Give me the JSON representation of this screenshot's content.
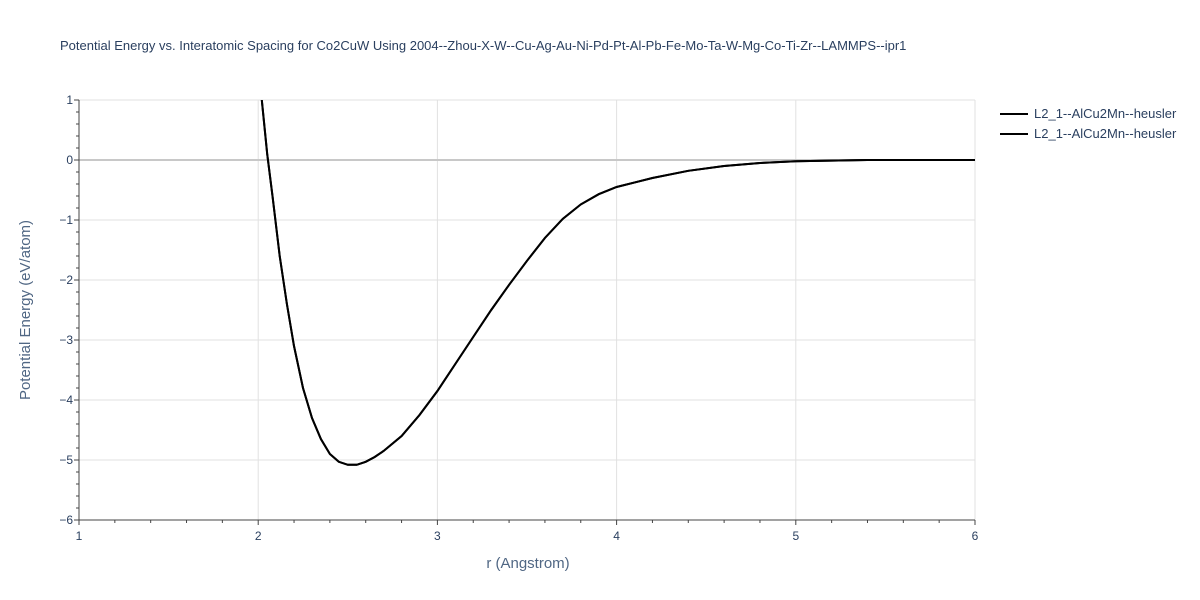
{
  "chart_data": {
    "type": "line",
    "title": "Potential Energy vs. Interatomic Spacing for Co2CuW Using 2004--Zhou-X-W--Cu-Ag-Au-Ni-Pd-Pt-Al-Pb-Fe-Mo-Ta-W-Mg-Co-Ti-Zr--LAMMPS--ipr1",
    "xlabel": "r (Angstrom)",
    "ylabel": "Potential Energy (eV/atom)",
    "xlim": [
      1,
      6
    ],
    "ylim": [
      -6,
      1
    ],
    "x_ticks": [
      1,
      2,
      3,
      4,
      5,
      6
    ],
    "y_ticks": [
      1,
      0,
      -1,
      -2,
      -3,
      -4,
      -5,
      -6
    ],
    "y_tick_labels": [
      "1",
      "0",
      "−1",
      "−2",
      "−3",
      "−4",
      "−5",
      "−6"
    ],
    "grid": true,
    "legend_position": "top-right",
    "series": [
      {
        "name": "L2_1--AlCu2Mn--heusler",
        "color": "#000000",
        "x": [
          2.02,
          2.05,
          2.08,
          2.12,
          2.16,
          2.2,
          2.25,
          2.3,
          2.35,
          2.4,
          2.45,
          2.5,
          2.55,
          2.6,
          2.65,
          2.7,
          2.8,
          2.9,
          3.0,
          3.1,
          3.2,
          3.3,
          3.4,
          3.5,
          3.6,
          3.7,
          3.8,
          3.9,
          4.0,
          4.2,
          4.4,
          4.6,
          4.8,
          5.0,
          5.2,
          5.4,
          5.6,
          5.8,
          6.0
        ],
        "y": [
          1.0,
          0.1,
          -0.6,
          -1.6,
          -2.4,
          -3.1,
          -3.8,
          -4.3,
          -4.65,
          -4.9,
          -5.03,
          -5.08,
          -5.08,
          -5.03,
          -4.95,
          -4.85,
          -4.6,
          -4.25,
          -3.85,
          -3.4,
          -2.95,
          -2.5,
          -2.08,
          -1.68,
          -1.3,
          -0.98,
          -0.74,
          -0.57,
          -0.45,
          -0.3,
          -0.18,
          -0.1,
          -0.05,
          -0.02,
          -0.01,
          0.0,
          0.0,
          0.0,
          0.0
        ]
      },
      {
        "name": "L2_1--AlCu2Mn--heusler",
        "color": "#000000",
        "x": [
          2.02,
          2.05,
          2.08,
          2.12,
          2.16,
          2.2,
          2.25,
          2.3,
          2.35,
          2.4,
          2.45,
          2.5,
          2.55,
          2.6,
          2.65,
          2.7,
          2.8,
          2.9,
          3.0,
          3.1,
          3.2,
          3.3,
          3.4,
          3.5,
          3.6,
          3.7,
          3.8,
          3.9,
          4.0,
          4.2,
          4.4,
          4.6,
          4.8,
          5.0,
          5.2,
          5.4,
          5.6,
          5.8,
          6.0
        ],
        "y": [
          1.0,
          0.1,
          -0.6,
          -1.6,
          -2.4,
          -3.1,
          -3.8,
          -4.3,
          -4.65,
          -4.9,
          -5.03,
          -5.08,
          -5.08,
          -5.03,
          -4.95,
          -4.85,
          -4.6,
          -4.25,
          -3.85,
          -3.4,
          -2.95,
          -2.5,
          -2.08,
          -1.68,
          -1.3,
          -0.98,
          -0.74,
          -0.57,
          -0.45,
          -0.3,
          -0.18,
          -0.1,
          -0.05,
          -0.02,
          -0.01,
          0.0,
          0.0,
          0.0,
          0.0
        ]
      }
    ]
  }
}
